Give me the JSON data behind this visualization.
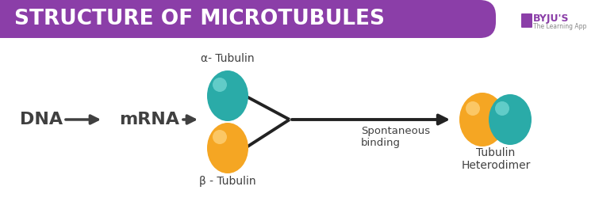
{
  "title": "STRUCTURE OF MICROTUBULES",
  "title_bg_color": "#8B3EA8",
  "title_text_color": "#FFFFFF",
  "bg_color": "#FFFFFF",
  "teal_color": "#2AABA8",
  "orange_color": "#F5A623",
  "text_color": "#404040",
  "dna_label": "DNA",
  "mrna_label": "mRNA",
  "alpha_label": "α- Tubulin",
  "beta_label": "β - Tubulin",
  "spontaneous_label": "Spontaneous\nbinding",
  "heterodimer_label": "Tubulin\nHeterodimer",
  "figsize": [
    7.5,
    2.69
  ],
  "dpi": 100
}
